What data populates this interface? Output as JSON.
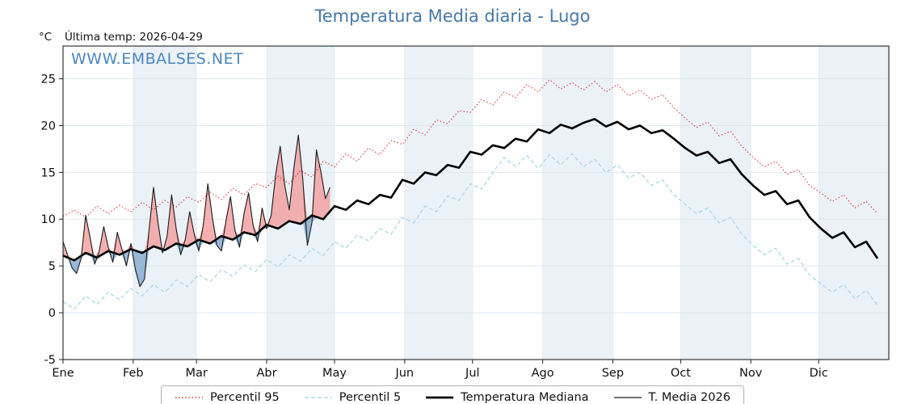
{
  "header": {
    "title": "Temperatura Media diaria - Lugo",
    "last_temp_label": "Última temp: 2026-04-29",
    "y_unit": "°C",
    "watermark": "WWW.EMBALSES.NET"
  },
  "legend": {
    "items": [
      {
        "label": "Percentil 95",
        "style": "red-dotted"
      },
      {
        "label": "Percentil 5",
        "style": "cyan-dashed"
      },
      {
        "label": "Temperatura Mediana",
        "style": "black-thick"
      },
      {
        "label": "T. Media 2026",
        "style": "black-thin"
      }
    ]
  },
  "chart_data": {
    "type": "line",
    "title": "Temperatura Media diaria - Lugo",
    "xlabel": "",
    "ylabel": "°C",
    "ylim": [
      -5,
      28.5
    ],
    "yticks": [
      -5,
      0,
      5,
      10,
      15,
      20,
      25
    ],
    "x_months": [
      "Ene",
      "Feb",
      "Mar",
      "Abr",
      "May",
      "Jun",
      "Jul",
      "Ago",
      "Sep",
      "Oct",
      "Nov",
      "Dic"
    ],
    "month_start_days": [
      0,
      31,
      59,
      90,
      120,
      151,
      181,
      212,
      243,
      273,
      304,
      334
    ],
    "days_in_year": 365,
    "grid": "light horizontal and vertical lines, alternating month background bands",
    "legend_position": "bottom-center",
    "band_color": "#eaf1f7",
    "fills": {
      "above_median_color": "#f2a2a2",
      "below_median_color": "#87add0"
    },
    "series": [
      {
        "name": "Percentil 95",
        "line": "dotted",
        "color": "#d93636",
        "step_days": 5,
        "values": [
          10.3,
          11.0,
          10.2,
          11.4,
          10.6,
          11.5,
          10.8,
          11.8,
          11.0,
          12.0,
          11.3,
          12.4,
          11.8,
          12.9,
          12.1,
          13.3,
          12.6,
          13.8,
          13.4,
          14.6,
          13.8,
          15.2,
          14.5,
          16.2,
          15.6,
          17.0,
          16.2,
          17.6,
          16.9,
          18.4,
          18.0,
          19.6,
          19.0,
          20.6,
          20.2,
          21.6,
          21.4,
          22.8,
          22.2,
          23.6,
          23.0,
          24.4,
          23.6,
          24.9,
          23.9,
          24.6,
          23.8,
          24.7,
          23.6,
          24.4,
          23.2,
          23.8,
          22.8,
          23.3,
          21.9,
          20.8,
          19.8,
          20.4,
          18.9,
          19.4,
          17.8,
          16.6,
          15.6,
          16.2,
          14.8,
          15.3,
          13.6,
          12.8,
          11.9,
          12.6,
          11.2,
          11.9,
          10.6
        ]
      },
      {
        "name": "Percentil 5",
        "line": "dashed",
        "color": "#a9d7e6",
        "step_days": 5,
        "values": [
          1.2,
          0.4,
          1.8,
          0.9,
          2.2,
          1.4,
          2.6,
          1.8,
          3.0,
          2.2,
          3.5,
          2.8,
          4.1,
          3.3,
          4.6,
          3.9,
          5.1,
          4.4,
          5.7,
          4.9,
          6.2,
          5.5,
          6.9,
          6.1,
          7.6,
          6.9,
          8.3,
          7.7,
          9.0,
          8.4,
          10.2,
          9.6,
          11.4,
          10.8,
          12.5,
          12.0,
          13.8,
          13.2,
          15.0,
          16.6,
          15.6,
          16.8,
          15.4,
          16.9,
          15.8,
          17.0,
          15.6,
          16.4,
          15.0,
          15.8,
          14.4,
          15.0,
          13.6,
          14.2,
          12.6,
          11.6,
          10.6,
          11.2,
          9.6,
          10.2,
          8.4,
          7.2,
          6.2,
          6.9,
          5.2,
          5.8,
          4.0,
          3.1,
          2.2,
          3.0,
          1.5,
          2.4,
          0.8
        ]
      },
      {
        "name": "Temperatura Mediana",
        "line": "solid-thick",
        "color": "#000000",
        "step_days": 5,
        "values": [
          6.1,
          5.6,
          6.4,
          5.9,
          6.6,
          6.2,
          6.8,
          6.4,
          7.1,
          6.7,
          7.4,
          7.1,
          7.8,
          7.4,
          8.2,
          7.8,
          8.6,
          8.3,
          9.4,
          9.0,
          9.8,
          9.5,
          10.4,
          10.0,
          11.4,
          11.0,
          12.0,
          11.6,
          12.6,
          12.3,
          14.2,
          13.8,
          15.0,
          14.7,
          15.8,
          15.5,
          17.2,
          16.9,
          17.9,
          17.6,
          18.6,
          18.3,
          19.6,
          19.2,
          20.1,
          19.7,
          20.3,
          20.7,
          19.9,
          20.4,
          19.6,
          20.0,
          19.2,
          19.5,
          18.6,
          17.6,
          16.8,
          17.2,
          16.0,
          16.4,
          14.8,
          13.6,
          12.6,
          13.0,
          11.6,
          12.0,
          10.2,
          9.0,
          8.0,
          8.6,
          7.0,
          7.6,
          5.8
        ]
      },
      {
        "name": "T. Media 2026",
        "line": "solid-thin",
        "color": "#1a1a1a",
        "step_days": 2,
        "last_day": 118,
        "values": [
          7.6,
          6.2,
          4.8,
          4.2,
          5.8,
          10.4,
          8.0,
          5.2,
          6.6,
          9.2,
          7.0,
          5.4,
          8.6,
          6.8,
          5.0,
          7.4,
          4.6,
          2.8,
          3.6,
          8.8,
          13.4,
          9.6,
          6.4,
          8.2,
          12.6,
          9.0,
          6.2,
          7.8,
          10.8,
          8.4,
          6.6,
          9.4,
          13.8,
          10.2,
          7.2,
          6.6,
          9.8,
          12.4,
          8.8,
          7.0,
          10.6,
          12.8,
          9.4,
          7.6,
          11.2,
          9.0,
          10.4,
          14.8,
          17.8,
          13.6,
          11.0,
          15.4,
          19.0,
          14.2,
          7.2,
          9.6,
          17.4,
          15.0,
          12.2,
          13.4
        ]
      }
    ]
  }
}
